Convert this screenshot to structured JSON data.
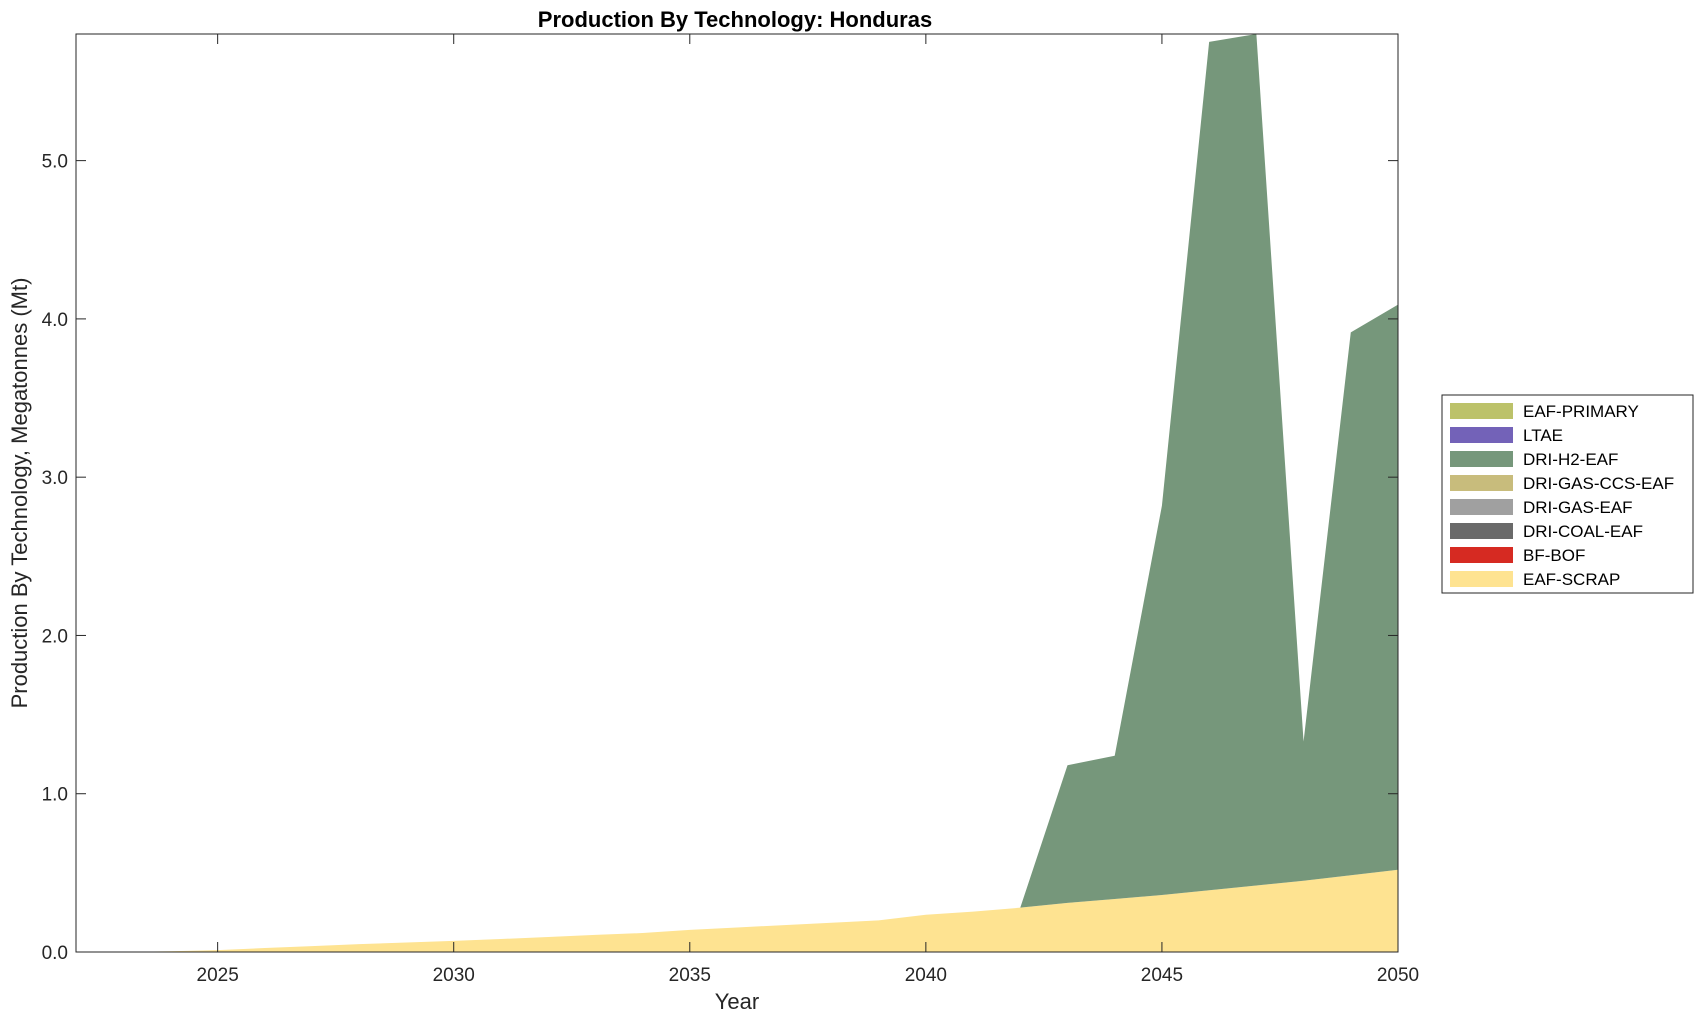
{
  "chart_data": {
    "type": "area",
    "stacked": true,
    "title": "Production By Technology: Honduras",
    "xlabel": "Year",
    "ylabel": "Production By Technology, Megatonnes (Mt)",
    "xlim": [
      2022,
      2050
    ],
    "ylim": [
      0,
      5.8
    ],
    "xticks": [
      2025,
      2030,
      2035,
      2040,
      2045,
      2050
    ],
    "yticks": [
      0,
      1,
      2,
      3,
      4,
      5
    ],
    "ytick_labels": [
      "0.0",
      "1.0",
      "2.0",
      "3.0",
      "4.0",
      "5.0"
    ],
    "grid": false,
    "legend_position": "right",
    "x": [
      2022,
      2023,
      2024,
      2025,
      2026,
      2027,
      2028,
      2029,
      2030,
      2031,
      2032,
      2033,
      2034,
      2035,
      2036,
      2037,
      2038,
      2039,
      2040,
      2041,
      2042,
      2043,
      2044,
      2045,
      2046,
      2047,
      2048,
      2049,
      2050
    ],
    "series": [
      {
        "name": "EAF-SCRAP",
        "color": "#FEE391",
        "values": [
          0,
          0,
          0.005,
          0.012,
          0.025,
          0.037,
          0.05,
          0.06,
          0.07,
          0.082,
          0.095,
          0.108,
          0.12,
          0.14,
          0.155,
          0.17,
          0.185,
          0.2,
          0.235,
          0.255,
          0.28,
          0.31,
          0.335,
          0.36,
          0.39,
          0.42,
          0.45,
          0.485,
          0.52
        ]
      },
      {
        "name": "BF-BOF",
        "color": "#D62A22",
        "values": [
          0,
          0,
          0,
          0,
          0,
          0,
          0,
          0,
          0,
          0,
          0,
          0,
          0,
          0,
          0,
          0,
          0,
          0,
          0,
          0,
          0,
          0,
          0,
          0,
          0,
          0,
          0,
          0,
          0
        ]
      },
      {
        "name": "DRI-COAL-EAF",
        "color": "#6A6A6A",
        "values": [
          0,
          0,
          0,
          0,
          0,
          0,
          0,
          0,
          0,
          0,
          0,
          0,
          0,
          0,
          0,
          0,
          0,
          0,
          0,
          0,
          0,
          0,
          0,
          0,
          0,
          0,
          0,
          0,
          0
        ]
      },
      {
        "name": "DRI-GAS-EAF",
        "color": "#A0A0A0",
        "values": [
          0,
          0,
          0,
          0,
          0,
          0,
          0,
          0,
          0,
          0,
          0,
          0,
          0,
          0,
          0,
          0,
          0,
          0,
          0,
          0,
          0,
          0,
          0,
          0,
          0,
          0,
          0,
          0,
          0
        ]
      },
      {
        "name": "DRI-GAS-CCS-EAF",
        "color": "#C8BC7C",
        "values": [
          0,
          0,
          0,
          0,
          0,
          0,
          0,
          0,
          0,
          0,
          0,
          0,
          0,
          0,
          0,
          0,
          0,
          0,
          0,
          0,
          0,
          0,
          0,
          0,
          0,
          0,
          0,
          0,
          0
        ]
      },
      {
        "name": "DRI-H2-EAF",
        "color": "#76977B",
        "values": [
          0,
          0,
          0,
          0,
          0,
          0,
          0,
          0,
          0,
          0,
          0,
          0,
          0,
          0,
          0,
          0,
          0,
          0,
          0,
          0,
          0,
          0.87,
          0.905,
          2.46,
          5.36,
          5.38,
          0.88,
          3.43,
          3.57
        ]
      },
      {
        "name": "LTAE",
        "color": "#7362B8",
        "values": [
          0,
          0,
          0,
          0,
          0,
          0,
          0,
          0,
          0,
          0,
          0,
          0,
          0,
          0,
          0,
          0,
          0,
          0,
          0,
          0,
          0,
          0,
          0,
          0,
          0,
          0,
          0,
          0,
          0
        ]
      },
      {
        "name": "EAF-PRIMARY",
        "color": "#BCC26A",
        "values": [
          0,
          0,
          0,
          0,
          0,
          0,
          0,
          0,
          0,
          0,
          0,
          0,
          0,
          0,
          0,
          0,
          0,
          0,
          0,
          0,
          0,
          0,
          0,
          0,
          0,
          0,
          0,
          0,
          0
        ]
      }
    ],
    "legend_order": [
      "EAF-PRIMARY",
      "LTAE",
      "DRI-H2-EAF",
      "DRI-GAS-CCS-EAF",
      "DRI-GAS-EAF",
      "DRI-COAL-EAF",
      "BF-BOF",
      "EAF-SCRAP"
    ]
  }
}
